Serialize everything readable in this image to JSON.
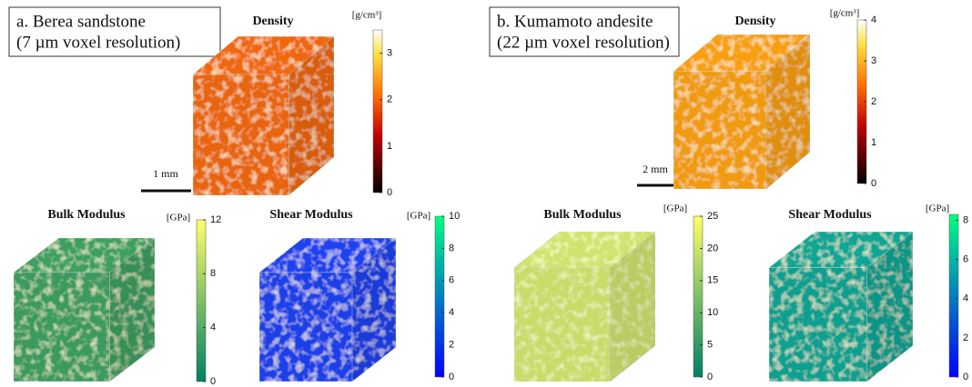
{
  "panels": [
    {
      "title_lines": [
        "a. Berea sandstone",
        "(7 µm voxel resolution)"
      ],
      "scale_bar": "1 mm",
      "maps": [
        {
          "title": "Density",
          "unit": "[g/cm³]",
          "clim": [
            0,
            3.5
          ],
          "ticks": [
            0,
            1,
            2,
            3
          ]
        },
        {
          "title": "Bulk Modulus",
          "unit": "[GPa]",
          "clim": [
            0,
            12
          ],
          "ticks": [
            0,
            4,
            8,
            12
          ]
        },
        {
          "title": "Shear Modulus",
          "unit": "[GPa]",
          "clim": [
            0,
            10
          ],
          "ticks": [
            0,
            2,
            4,
            6,
            8,
            10
          ]
        }
      ]
    },
    {
      "title_lines": [
        "b. Kumamoto andesite",
        "(22 µm voxel resolution)"
      ],
      "scale_bar": "2 mm",
      "maps": [
        {
          "title": "Density",
          "unit": "[g/cm³]",
          "clim": [
            0,
            4
          ],
          "ticks": [
            0,
            1,
            2,
            3,
            4
          ]
        },
        {
          "title": "Bulk Modulus",
          "unit": "[GPa]",
          "clim": [
            0,
            25
          ],
          "ticks": [
            0,
            5,
            10,
            15,
            20,
            25
          ]
        },
        {
          "title": "Shear Modulus",
          "unit": "[GPa]",
          "clim": [
            0,
            8.3
          ],
          "ticks": [
            0,
            2,
            4,
            6,
            8
          ]
        }
      ]
    }
  ]
}
